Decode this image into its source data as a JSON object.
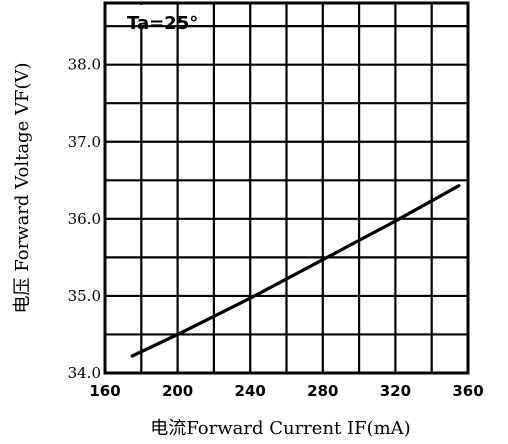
{
  "chart_data": {
    "type": "line",
    "xlabel": "电流Forward Current IF(mA)",
    "ylabel": "电压 Forward Voltage VF(V)",
    "annotation": "Ta=25°",
    "xlim": [
      160,
      360
    ],
    "ylim": [
      34.0,
      38.8
    ],
    "x_ticks": [
      160,
      200,
      240,
      280,
      320,
      360
    ],
    "y_ticks": [
      34.0,
      35.0,
      36.0,
      37.0,
      38.0
    ],
    "x_tick_labels": [
      "160",
      "200",
      "240",
      "280",
      "320",
      "360"
    ],
    "y_tick_labels": [
      "34.0",
      "35.0",
      "36.0",
      "37.0",
      "38.0"
    ],
    "grid": true,
    "series": [
      {
        "x": [
          175,
          200,
          240,
          280,
          320,
          355
        ],
        "y": [
          34.22,
          34.5,
          34.97,
          35.47,
          35.97,
          36.43
        ]
      }
    ]
  }
}
